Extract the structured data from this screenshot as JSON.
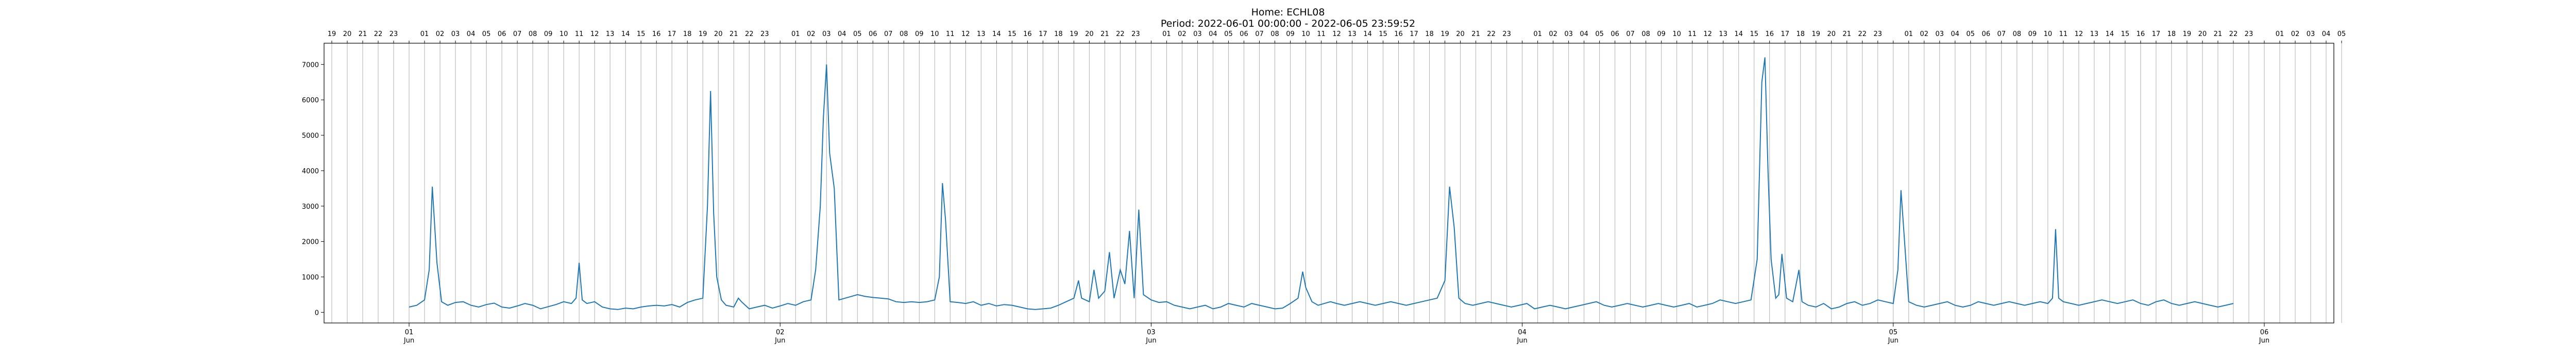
{
  "chart_data": {
    "type": "line",
    "title": "Home: ECHL08",
    "subtitle": "Period: 2022-06-01 00:00:00 - 2022-06-05 23:59:52",
    "xlabel": "",
    "ylabel": "",
    "xlim_hours": [
      -5.5,
      124.5
    ],
    "ylim": [
      -300,
      7600
    ],
    "yticks": [
      0,
      1000,
      2000,
      3000,
      4000,
      5000,
      6000,
      7000
    ],
    "grid": "vertical hourly lines",
    "x_major_ticks": [
      {
        "hour": 0,
        "day": "01",
        "month": "Jun"
      },
      {
        "hour": 24,
        "day": "02",
        "month": "Jun"
      },
      {
        "hour": 48,
        "day": "03",
        "month": "Jun"
      },
      {
        "hour": 72,
        "day": "04",
        "month": "Jun"
      },
      {
        "hour": 96,
        "day": "05",
        "month": "Jun"
      },
      {
        "hour": 120,
        "day": "06",
        "month": "Jun"
      }
    ],
    "top_hour_ticks": [
      "19",
      "20",
      "21",
      "22",
      "23",
      "",
      "01",
      "02",
      "03",
      "04",
      "05",
      "06",
      "07",
      "08",
      "09",
      "10",
      "11",
      "12",
      "13",
      "14",
      "15",
      "16",
      "17",
      "18",
      "19",
      "20",
      "21",
      "22",
      "23",
      "",
      "01",
      "02",
      "03",
      "04",
      "05",
      "06",
      "07",
      "08",
      "09",
      "10",
      "11",
      "12",
      "13",
      "14",
      "15",
      "16",
      "17",
      "18",
      "19",
      "20",
      "21",
      "22",
      "23",
      "",
      "01",
      "02",
      "03",
      "04",
      "05",
      "06",
      "07",
      "08",
      "09",
      "10",
      "11",
      "12",
      "13",
      "14",
      "15",
      "16",
      "17",
      "18",
      "19",
      "20",
      "21",
      "22",
      "23",
      "",
      "01",
      "02",
      "03",
      "04",
      "05",
      "06",
      "07",
      "08",
      "09",
      "10",
      "11",
      "12",
      "13",
      "14",
      "15",
      "16",
      "17",
      "18",
      "19",
      "20",
      "21",
      "22",
      "23",
      "",
      "01",
      "02",
      "03",
      "04",
      "05",
      "06",
      "07",
      "08",
      "09",
      "10",
      "11",
      "12",
      "13",
      "14",
      "15",
      "16",
      "17",
      "18",
      "19",
      "20",
      "21",
      "22",
      "23",
      "",
      "01",
      "02",
      "03",
      "04",
      "05"
    ],
    "series": [
      {
        "color": "#1f77b4",
        "points": [
          [
            0.0,
            150
          ],
          [
            0.5,
            200
          ],
          [
            1.0,
            350
          ],
          [
            1.3,
            1200
          ],
          [
            1.5,
            3550
          ],
          [
            1.8,
            1400
          ],
          [
            2.1,
            300
          ],
          [
            2.5,
            200
          ],
          [
            3.0,
            280
          ],
          [
            3.5,
            300
          ],
          [
            4.0,
            200
          ],
          [
            4.5,
            150
          ],
          [
            5.0,
            220
          ],
          [
            5.5,
            260
          ],
          [
            6.0,
            150
          ],
          [
            6.5,
            120
          ],
          [
            7.0,
            180
          ],
          [
            7.5,
            250
          ],
          [
            8.0,
            200
          ],
          [
            8.5,
            100
          ],
          [
            9.0,
            160
          ],
          [
            9.5,
            220
          ],
          [
            10.0,
            300
          ],
          [
            10.5,
            250
          ],
          [
            10.8,
            400
          ],
          [
            11.0,
            1400
          ],
          [
            11.2,
            350
          ],
          [
            11.5,
            250
          ],
          [
            12.0,
            300
          ],
          [
            12.5,
            150
          ],
          [
            13.0,
            100
          ],
          [
            13.5,
            80
          ],
          [
            14.0,
            120
          ],
          [
            14.5,
            100
          ],
          [
            15.0,
            150
          ],
          [
            15.5,
            180
          ],
          [
            16.0,
            200
          ],
          [
            16.5,
            180
          ],
          [
            17.0,
            220
          ],
          [
            17.5,
            150
          ],
          [
            18.0,
            280
          ],
          [
            18.5,
            350
          ],
          [
            19.0,
            400
          ],
          [
            19.3,
            3000
          ],
          [
            19.5,
            6250
          ],
          [
            19.7,
            2800
          ],
          [
            19.9,
            1000
          ],
          [
            20.2,
            350
          ],
          [
            20.5,
            200
          ],
          [
            21.0,
            150
          ],
          [
            21.3,
            400
          ],
          [
            21.5,
            300
          ],
          [
            22.0,
            100
          ],
          [
            22.5,
            150
          ],
          [
            23.0,
            200
          ],
          [
            23.5,
            120
          ],
          [
            24.0,
            180
          ],
          [
            24.5,
            250
          ],
          [
            25.0,
            200
          ],
          [
            25.5,
            300
          ],
          [
            26.0,
            350
          ],
          [
            26.3,
            1200
          ],
          [
            26.6,
            3000
          ],
          [
            26.8,
            5500
          ],
          [
            27.0,
            7000
          ],
          [
            27.2,
            4500
          ],
          [
            27.5,
            3500
          ],
          [
            27.8,
            350
          ],
          [
            28.2,
            400
          ],
          [
            28.6,
            450
          ],
          [
            29.0,
            500
          ],
          [
            29.5,
            450
          ],
          [
            30.0,
            420
          ],
          [
            30.5,
            400
          ],
          [
            31.0,
            380
          ],
          [
            31.5,
            300
          ],
          [
            32.0,
            280
          ],
          [
            32.5,
            300
          ],
          [
            33.0,
            280
          ],
          [
            33.5,
            300
          ],
          [
            34.0,
            350
          ],
          [
            34.3,
            1000
          ],
          [
            34.5,
            3650
          ],
          [
            34.7,
            2600
          ],
          [
            35.0,
            300
          ],
          [
            35.5,
            280
          ],
          [
            36.0,
            250
          ],
          [
            36.5,
            300
          ],
          [
            37.0,
            200
          ],
          [
            37.5,
            250
          ],
          [
            38.0,
            180
          ],
          [
            38.5,
            220
          ],
          [
            39.0,
            200
          ],
          [
            39.5,
            150
          ],
          [
            40.0,
            100
          ],
          [
            40.5,
            80
          ],
          [
            41.0,
            100
          ],
          [
            41.5,
            120
          ],
          [
            42.0,
            200
          ],
          [
            42.5,
            300
          ],
          [
            43.0,
            400
          ],
          [
            43.3,
            900
          ],
          [
            43.5,
            400
          ],
          [
            44.0,
            300
          ],
          [
            44.3,
            1200
          ],
          [
            44.6,
            400
          ],
          [
            45.0,
            600
          ],
          [
            45.3,
            1700
          ],
          [
            45.6,
            400
          ],
          [
            46.0,
            1200
          ],
          [
            46.3,
            800
          ],
          [
            46.6,
            2300
          ],
          [
            46.9,
            400
          ],
          [
            47.2,
            2900
          ],
          [
            47.5,
            500
          ],
          [
            48.0,
            350
          ],
          [
            48.5,
            280
          ],
          [
            49.0,
            300
          ],
          [
            49.5,
            200
          ],
          [
            50.0,
            150
          ],
          [
            50.5,
            100
          ],
          [
            51.0,
            150
          ],
          [
            51.5,
            200
          ],
          [
            52.0,
            100
          ],
          [
            52.5,
            150
          ],
          [
            53.0,
            250
          ],
          [
            53.5,
            200
          ],
          [
            54.0,
            150
          ],
          [
            54.5,
            250
          ],
          [
            55.0,
            200
          ],
          [
            55.5,
            150
          ],
          [
            56.0,
            100
          ],
          [
            56.5,
            120
          ],
          [
            57.0,
            250
          ],
          [
            57.5,
            400
          ],
          [
            57.8,
            1150
          ],
          [
            58.0,
            700
          ],
          [
            58.4,
            300
          ],
          [
            58.8,
            200
          ],
          [
            59.2,
            250
          ],
          [
            59.6,
            300
          ],
          [
            60.0,
            250
          ],
          [
            60.5,
            200
          ],
          [
            61.0,
            250
          ],
          [
            61.5,
            300
          ],
          [
            62.0,
            250
          ],
          [
            62.5,
            200
          ],
          [
            63.0,
            250
          ],
          [
            63.5,
            300
          ],
          [
            64.0,
            250
          ],
          [
            64.5,
            200
          ],
          [
            65.0,
            250
          ],
          [
            65.5,
            300
          ],
          [
            66.0,
            350
          ],
          [
            66.5,
            400
          ],
          [
            67.0,
            900
          ],
          [
            67.3,
            3550
          ],
          [
            67.6,
            2400
          ],
          [
            67.9,
            400
          ],
          [
            68.3,
            250
          ],
          [
            68.8,
            200
          ],
          [
            69.3,
            250
          ],
          [
            69.8,
            300
          ],
          [
            70.3,
            250
          ],
          [
            70.8,
            200
          ],
          [
            71.3,
            150
          ],
          [
            71.8,
            200
          ],
          [
            72.3,
            250
          ],
          [
            72.8,
            100
          ],
          [
            73.3,
            150
          ],
          [
            73.8,
            200
          ],
          [
            74.3,
            150
          ],
          [
            74.8,
            100
          ],
          [
            75.3,
            150
          ],
          [
            75.8,
            200
          ],
          [
            76.3,
            250
          ],
          [
            76.8,
            300
          ],
          [
            77.3,
            200
          ],
          [
            77.8,
            150
          ],
          [
            78.3,
            200
          ],
          [
            78.8,
            250
          ],
          [
            79.3,
            200
          ],
          [
            79.8,
            150
          ],
          [
            80.3,
            200
          ],
          [
            80.8,
            250
          ],
          [
            81.3,
            200
          ],
          [
            81.8,
            150
          ],
          [
            82.3,
            200
          ],
          [
            82.8,
            250
          ],
          [
            83.3,
            150
          ],
          [
            83.8,
            200
          ],
          [
            84.3,
            250
          ],
          [
            84.8,
            350
          ],
          [
            85.3,
            300
          ],
          [
            85.8,
            250
          ],
          [
            86.3,
            300
          ],
          [
            86.8,
            350
          ],
          [
            87.2,
            1500
          ],
          [
            87.5,
            6500
          ],
          [
            87.7,
            7200
          ],
          [
            87.9,
            4000
          ],
          [
            88.1,
            1500
          ],
          [
            88.4,
            400
          ],
          [
            88.6,
            500
          ],
          [
            88.8,
            1650
          ],
          [
            89.1,
            400
          ],
          [
            89.5,
            300
          ],
          [
            89.9,
            1200
          ],
          [
            90.1,
            300
          ],
          [
            90.5,
            200
          ],
          [
            91.0,
            150
          ],
          [
            91.5,
            250
          ],
          [
            92.0,
            100
          ],
          [
            92.5,
            150
          ],
          [
            93.0,
            250
          ],
          [
            93.5,
            300
          ],
          [
            94.0,
            200
          ],
          [
            94.5,
            250
          ],
          [
            95.0,
            350
          ],
          [
            95.5,
            300
          ],
          [
            96.0,
            250
          ],
          [
            96.3,
            1200
          ],
          [
            96.5,
            3450
          ],
          [
            96.7,
            2200
          ],
          [
            97.0,
            300
          ],
          [
            97.5,
            200
          ],
          [
            98.0,
            150
          ],
          [
            98.5,
            200
          ],
          [
            99.0,
            250
          ],
          [
            99.5,
            300
          ],
          [
            100.0,
            200
          ],
          [
            100.5,
            150
          ],
          [
            101.0,
            200
          ],
          [
            101.5,
            300
          ],
          [
            102.0,
            250
          ],
          [
            102.5,
            200
          ],
          [
            103.0,
            250
          ],
          [
            103.5,
            300
          ],
          [
            104.0,
            250
          ],
          [
            104.5,
            200
          ],
          [
            105.0,
            250
          ],
          [
            105.5,
            300
          ],
          [
            106.0,
            250
          ],
          [
            106.3,
            400
          ],
          [
            106.5,
            2350
          ],
          [
            106.7,
            400
          ],
          [
            107.0,
            300
          ],
          [
            107.5,
            250
          ],
          [
            108.0,
            200
          ],
          [
            108.5,
            250
          ],
          [
            109.0,
            300
          ],
          [
            109.5,
            350
          ],
          [
            110.0,
            300
          ],
          [
            110.5,
            250
          ],
          [
            111.0,
            300
          ],
          [
            111.5,
            350
          ],
          [
            112.0,
            250
          ],
          [
            112.5,
            200
          ],
          [
            113.0,
            300
          ],
          [
            113.5,
            350
          ],
          [
            114.0,
            250
          ],
          [
            114.5,
            200
          ],
          [
            115.0,
            250
          ],
          [
            115.5,
            300
          ],
          [
            116.0,
            250
          ],
          [
            116.5,
            200
          ],
          [
            117.0,
            150
          ],
          [
            117.5,
            200
          ],
          [
            118.0,
            250
          ]
        ]
      }
    ]
  }
}
